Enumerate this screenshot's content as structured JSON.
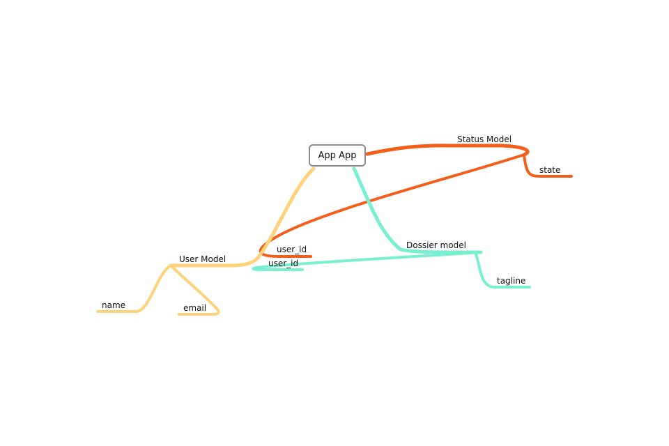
{
  "colors": {
    "user_branch": "#fdd27a",
    "status_branch": "#f45e1a",
    "dossier_branch": "#78f0d0",
    "root_border": "#8a8a8a",
    "text": "#111111"
  },
  "root": {
    "label": "App App"
  },
  "nodes": {
    "status_model": {
      "label": "Status Model"
    },
    "state": {
      "label": "state"
    },
    "status_user_id": {
      "label": "user_id"
    },
    "user_model": {
      "label": "User Model"
    },
    "name": {
      "label": "name"
    },
    "email": {
      "label": "email"
    },
    "dossier_model": {
      "label": "Dossier model"
    },
    "dossier_user_id": {
      "label": "user_id"
    },
    "tagline": {
      "label": "tagline"
    }
  }
}
